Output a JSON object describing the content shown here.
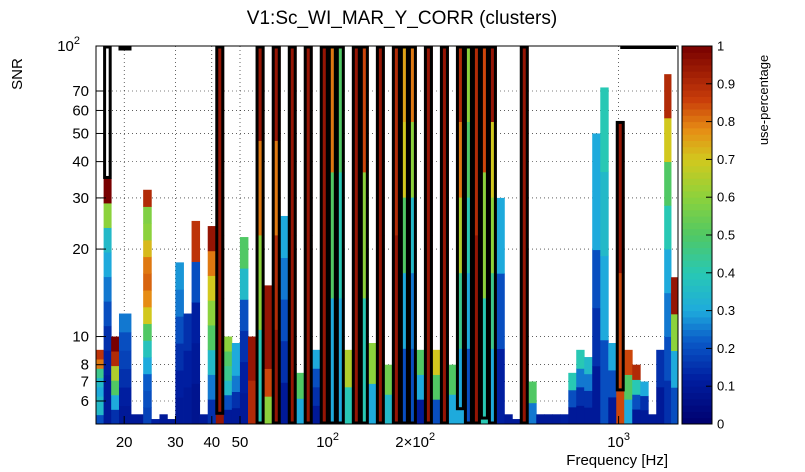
{
  "chart_data": {
    "type": "heatmap",
    "title": "V1:Sc_WI_MAR_Y_CORR (clusters)",
    "xlabel": "Frequency [Hz]",
    "ylabel": "SNR",
    "x_scale": "log",
    "y_scale": "log",
    "xlim": [
      16,
      1600
    ],
    "ylim": [
      5,
      100
    ],
    "grid": true,
    "x_ticks": [
      {
        "value": 20,
        "label": "20"
      },
      {
        "value": 30,
        "label": "30"
      },
      {
        "value": 40,
        "label": "40"
      },
      {
        "value": 50,
        "label": "50"
      },
      {
        "value": 100,
        "label": "10",
        "sup": "2"
      },
      {
        "value": 200,
        "label": "2×10",
        "sup": "2"
      },
      {
        "value": 1000,
        "label": "10",
        "sup": "3"
      }
    ],
    "y_ticks": [
      {
        "value": 6,
        "label": "6"
      },
      {
        "value": 7,
        "label": "7"
      },
      {
        "value": 8,
        "label": "8"
      },
      {
        "value": 10,
        "label": "10"
      },
      {
        "value": 20,
        "label": "20"
      },
      {
        "value": 30,
        "label": "30"
      },
      {
        "value": 40,
        "label": "40"
      },
      {
        "value": 50,
        "label": "50"
      },
      {
        "value": 60,
        "label": "60"
      },
      {
        "value": 70,
        "label": "70"
      },
      {
        "value": 100,
        "label": "10",
        "sup": "2"
      }
    ],
    "colorbar": {
      "label": "use-percentage",
      "range": [
        0,
        1
      ],
      "ticks": [
        "0",
        "0.1",
        "0.2",
        "0.3",
        "0.4",
        "0.5",
        "0.6",
        "0.7",
        "0.8",
        "0.9",
        "1"
      ]
    },
    "columns": [
      {
        "f": 16.5,
        "top": 9,
        "cells": [
          0.2,
          0.35,
          0.35,
          0.3,
          0.35,
          0.45,
          0.8,
          0.88
        ]
      },
      {
        "f": 17.5,
        "top": 35,
        "cells": [
          0.1,
          0.1,
          0.12,
          0.15,
          0.2,
          0.25,
          0.3,
          0.35,
          0.6,
          1.0
        ],
        "box": [
          35,
          100
        ]
      },
      {
        "f": 18.6,
        "top": 10,
        "cells": [
          0.15,
          0.3,
          0.5,
          0.65,
          0.9,
          1.0
        ]
      },
      {
        "f": 19.8,
        "top": 12,
        "cells": [
          0.1,
          0.12,
          0.15,
          0.18,
          0.2,
          0.25
        ],
        "box": [
          100,
          100
        ]
      },
      {
        "f": 22.5,
        "top": 5.4,
        "cells": [
          0.1
        ]
      },
      {
        "f": 24,
        "top": 32,
        "cells": [
          0.18,
          0.2,
          0.22,
          0.3,
          0.38,
          0.5,
          0.7,
          0.78,
          0.82,
          0.8,
          0.72,
          0.6,
          0.58,
          0.9
        ]
      },
      {
        "f": 25.6,
        "top": 5.2,
        "cells": [
          0.12
        ]
      },
      {
        "f": 27.3,
        "top": 5.4,
        "cells": [
          0.1
        ]
      },
      {
        "f": 29,
        "top": 5.2,
        "cells": [
          0.1
        ]
      },
      {
        "f": 31,
        "top": 18,
        "cells": [
          0.1,
          0.12,
          0.15,
          0.2,
          0.25,
          0.28
        ]
      },
      {
        "f": 33,
        "top": 12,
        "cells": [
          0.1,
          0.12,
          0.15
        ]
      },
      {
        "f": 35.2,
        "top": 25,
        "cells": [
          0.08,
          0.1,
          0.12,
          0.2,
          0.88
        ]
      },
      {
        "f": 37.5,
        "top": 5.4,
        "cells": [
          0.1
        ]
      },
      {
        "f": 40,
        "top": 24,
        "cells": [
          0.15,
          0.25,
          0.35,
          0.5,
          0.6,
          0.7,
          0.8,
          0.95
        ]
      },
      {
        "f": 42.6,
        "top": 100,
        "cells": [
          0.95,
          0.95,
          0.95,
          0.95,
          0.95,
          0.95
        ],
        "box": [
          5.4,
          100
        ]
      },
      {
        "f": 45.4,
        "top": 10,
        "cells": [
          0.1,
          0.2,
          0.35,
          0.45,
          0.5,
          0.6
        ]
      },
      {
        "f": 48.4,
        "top": 9.5,
        "cells": [
          0.1,
          0.15,
          0.25,
          0.3,
          0.3
        ]
      },
      {
        "f": 51.6,
        "top": 22,
        "cells": [
          0.1,
          0.12,
          0.15,
          0.2,
          0.35,
          0.5
        ]
      },
      {
        "f": 55,
        "top": 10,
        "cells": [
          0.9,
          0.95
        ]
      },
      {
        "f": 58.6,
        "top": 100,
        "cells": [
          0.4,
          0.6,
          0.8,
          0.95
        ],
        "box": [
          5,
          100
        ]
      },
      {
        "f": 62.5,
        "top": 15,
        "cells": [
          0.6,
          0.85,
          0.95,
          0.95,
          0.95
        ]
      },
      {
        "f": 66.6,
        "top": 100,
        "cells": [
          0.95,
          0.9,
          0.8,
          0.95
        ],
        "box": [
          5,
          100
        ]
      },
      {
        "f": 71,
        "top": 26,
        "cells": [
          0.1,
          0.15,
          0.2,
          0.25,
          0.3
        ]
      },
      {
        "f": 75.6,
        "top": 100,
        "cells": [
          0.95,
          0.95
        ],
        "box": [
          5,
          100
        ]
      },
      {
        "f": 80.5,
        "top": 7.5,
        "cells": [
          0.3,
          0.5
        ]
      },
      {
        "f": 85.8,
        "top": 100,
        "cells": [
          0.95,
          0.95
        ],
        "box": [
          5,
          100
        ]
      },
      {
        "f": 91.4,
        "top": 9,
        "cells": [
          0.1,
          0.15,
          0.2,
          0.3
        ]
      },
      {
        "f": 97.4,
        "top": 100,
        "cells": [
          0.95
        ],
        "box": [
          5,
          100
        ]
      },
      {
        "f": 103.8,
        "top": 100,
        "cells": [
          0.3,
          0.5,
          0.8
        ],
        "box": [
          5,
          100
        ]
      },
      {
        "f": 110.6,
        "top": 100,
        "cells": [
          0.3,
          0.4,
          0.5
        ],
        "box": [
          5,
          100
        ]
      },
      {
        "f": 117.8,
        "top": 9,
        "cells": [
          0.4,
          0.65
        ]
      },
      {
        "f": 125.5,
        "top": 100,
        "cells": [
          0.95
        ],
        "box": [
          5,
          100
        ]
      },
      {
        "f": 133.7,
        "top": 100,
        "cells": [
          0.4,
          0.6,
          0.85
        ],
        "box": [
          5,
          100
        ]
      },
      {
        "f": 142.5,
        "top": 9.5,
        "cells": [
          0.3,
          0.6
        ]
      },
      {
        "f": 151.8,
        "top": 100,
        "cells": [
          0.95,
          0.95
        ],
        "box": [
          5,
          100
        ]
      },
      {
        "f": 161.7,
        "top": 8,
        "cells": [
          0.35,
          0.55
        ]
      },
      {
        "f": 172.3,
        "top": 100,
        "cells": [
          0.95,
          0.9
        ],
        "box": [
          5,
          100
        ]
      },
      {
        "f": 183.6,
        "top": 100,
        "cells": [
          0.2,
          0.3,
          0.5,
          0.7,
          0.75
        ],
        "box": [
          5,
          100
        ]
      },
      {
        "f": 195.6,
        "top": 100,
        "cells": [
          0.2,
          0.25,
          0.35,
          0.6,
          0.8
        ],
        "box": [
          5,
          100
        ]
      },
      {
        "f": 208.4,
        "top": 9,
        "cells": [
          0.1,
          0.3,
          0.5
        ]
      },
      {
        "f": 222,
        "top": 100,
        "cells": [
          0.95,
          0.95
        ],
        "box": [
          5,
          100
        ]
      },
      {
        "f": 236.5,
        "top": 9,
        "cells": [
          0.2,
          0.5,
          0.7
        ]
      },
      {
        "f": 252,
        "top": 100,
        "cells": [
          0.95
        ],
        "box": [
          5,
          100
        ]
      },
      {
        "f": 268.5,
        "top": 8,
        "cells": [
          0.3,
          0.5
        ]
      },
      {
        "f": 286,
        "top": 100,
        "cells": [
          0.3,
          0.45,
          0.65,
          0.8,
          0.9
        ],
        "box": [
          5.6,
          100
        ]
      },
      {
        "f": 304.7,
        "top": 100,
        "cells": [
          0.2,
          0.3,
          0.4,
          0.5,
          0.6
        ],
        "box": [
          5,
          100
        ]
      },
      {
        "f": 324.6,
        "top": 100,
        "cells": [
          0.95,
          0.9
        ],
        "box": [
          5,
          100
        ]
      },
      {
        "f": 345.8,
        "top": 100,
        "cells": [
          0.4,
          0.6,
          0.85
        ],
        "box": [
          5.2,
          100
        ]
      },
      {
        "f": 368.4,
        "top": 100,
        "cells": [
          0.3,
          0.45,
          0.6,
          0.7,
          0.95
        ],
        "box": [
          5,
          100
        ]
      },
      {
        "f": 392.5,
        "top": 30,
        "cells": [
          0.12,
          0.2,
          0.3
        ]
      },
      {
        "f": 418,
        "top": 5.4,
        "cells": [
          0.1
        ]
      },
      {
        "f": 445,
        "top": 5.2,
        "cells": [
          0.1
        ]
      },
      {
        "f": 474,
        "top": 100,
        "cells": [
          0.95
        ],
        "box": [
          5,
          100
        ]
      },
      {
        "f": 505,
        "top": 7,
        "cells": [
          0.25,
          0.5
        ]
      },
      {
        "f": 538,
        "top": 5.4,
        "cells": [
          0.1
        ]
      },
      {
        "f": 573,
        "top": 5.4,
        "cells": [
          0.1
        ]
      },
      {
        "f": 611,
        "top": 5.4,
        "cells": [
          0.1
        ]
      },
      {
        "f": 651,
        "top": 5.4,
        "cells": [
          0.12
        ]
      },
      {
        "f": 693,
        "top": 7.5,
        "cells": [
          0.1,
          0.2,
          0.4
        ]
      },
      {
        "f": 738,
        "top": 9,
        "cells": [
          0.1,
          0.15,
          0.25,
          0.4
        ]
      },
      {
        "f": 786,
        "top": 8.5,
        "cells": [
          0.1,
          0.15,
          0.25,
          0.35
        ]
      },
      {
        "f": 838,
        "top": 50,
        "cells": [
          0.1,
          0.15,
          0.2,
          0.3,
          0.3
        ]
      },
      {
        "f": 893,
        "top": 72,
        "cells": [
          0.2,
          0.3,
          0.35,
          0.4
        ]
      },
      {
        "f": 951,
        "top": 9.5,
        "cells": [
          0.1,
          0.2,
          0.3
        ]
      },
      {
        "f": 1013,
        "top": 55,
        "cells": [
          0.85,
          0.95
        ],
        "box": [
          6.5,
          55
        ]
      },
      {
        "f": 1079,
        "top": 9,
        "cells": [
          0.3,
          0.5,
          0.85
        ]
      },
      {
        "f": 1150,
        "top": 8,
        "cells": [
          0.1,
          0.2,
          0.4,
          0.9
        ]
      },
      {
        "f": 1225,
        "top": 7,
        "cells": [
          0.1,
          0.15,
          0.3
        ]
      },
      {
        "f": 1305,
        "top": 5.4,
        "cells": [
          0.1
        ]
      },
      {
        "f": 1390,
        "top": 9,
        "cells": [
          0.1,
          0.15
        ]
      },
      {
        "f": 1480,
        "top": 80,
        "cells": [
          0.15,
          0.2,
          0.25,
          0.3,
          0.4,
          0.5,
          0.7,
          0.9
        ]
      },
      {
        "f": 1550,
        "top": 16,
        "cells": [
          0.2,
          0.3,
          0.6,
          0.95
        ]
      }
    ],
    "top_boxes": [
      [
        1013,
        1600
      ]
    ]
  }
}
